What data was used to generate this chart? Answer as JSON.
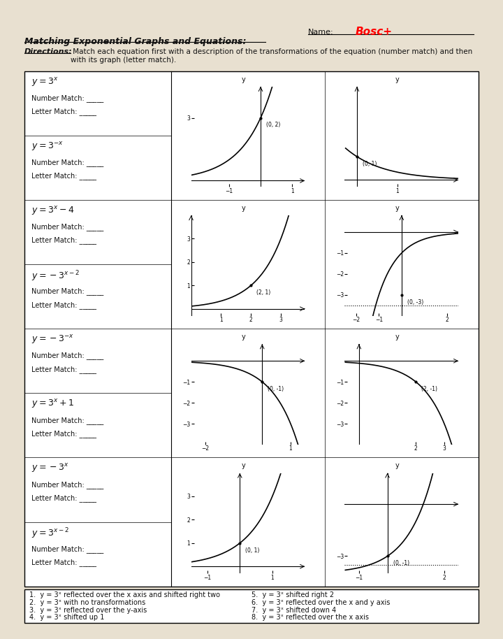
{
  "title": "Matching Exponential Graphs and Equations:",
  "name_label": "Name:",
  "name_value": "Bosc+",
  "directions_bold": "Directions:",
  "directions_rest": " Match each equation first with a description of the transformations of the equation (number match) and then\nwith its graph (letter match).",
  "eq_labels": [
    "$y = 3^{x}$",
    "$y = 3^{-x}$",
    "$y = 3^{x} - 4$",
    "$y = -3^{x-2}$",
    "$y = -3^{-x}$",
    "$y = 3^{x} + 1$",
    "$y = -3^{x}$",
    "$y = 3^{x-2}$"
  ],
  "descriptions": [
    "1.  y = 3ˣ reflected over the x axis and shifted right two",
    "2.  y = 3ˣ with no transformations",
    "3.  y = 3ˣ reflected over the y-axis",
    "4.  y = 3ˣ shifted up 1",
    "5.  y = 3ˣ shifted right 2",
    "6.  y = 3ˣ reflected over the x and y axis",
    "7.  y = 3ˣ shifted down 4",
    "8.  y = 3ˣ reflected over the x axis"
  ],
  "bg_color": "#e8e0d0",
  "paper_color": "#ffffff",
  "text_color": "#111111"
}
